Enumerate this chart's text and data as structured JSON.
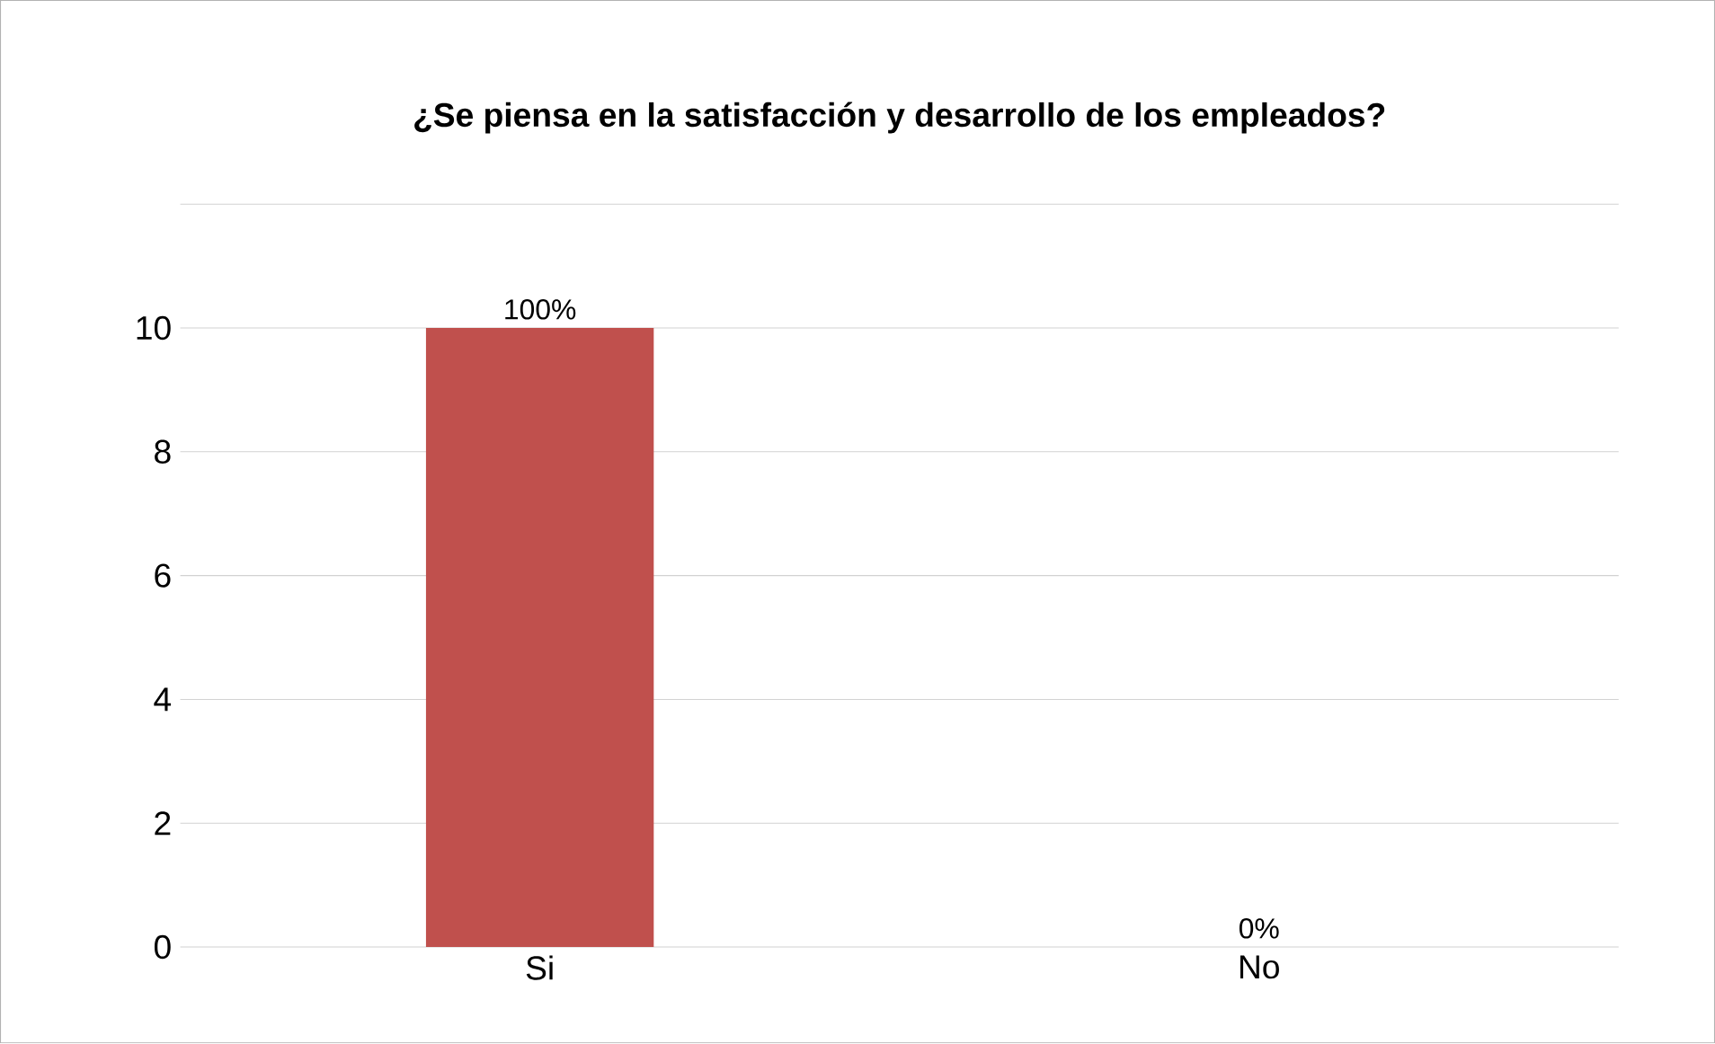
{
  "chart_data": {
    "type": "bar",
    "title": "¿Se piensa en la satisfacción y desarrollo de los empleados?",
    "categories": [
      "Si",
      "No"
    ],
    "values": [
      10,
      0
    ],
    "colors": [
      "#c0504d",
      "#604a7b"
    ],
    "annotations": [
      {
        "text": "100%",
        "x": "Si",
        "y": 10
      },
      {
        "text": "0%",
        "x": "No",
        "y": 0
      }
    ],
    "ylim": [
      0,
      12
    ],
    "yticks": [
      0,
      2,
      4,
      6,
      8,
      10,
      {
        "value": 12,
        "label": null
      }
    ],
    "grid": "y"
  }
}
